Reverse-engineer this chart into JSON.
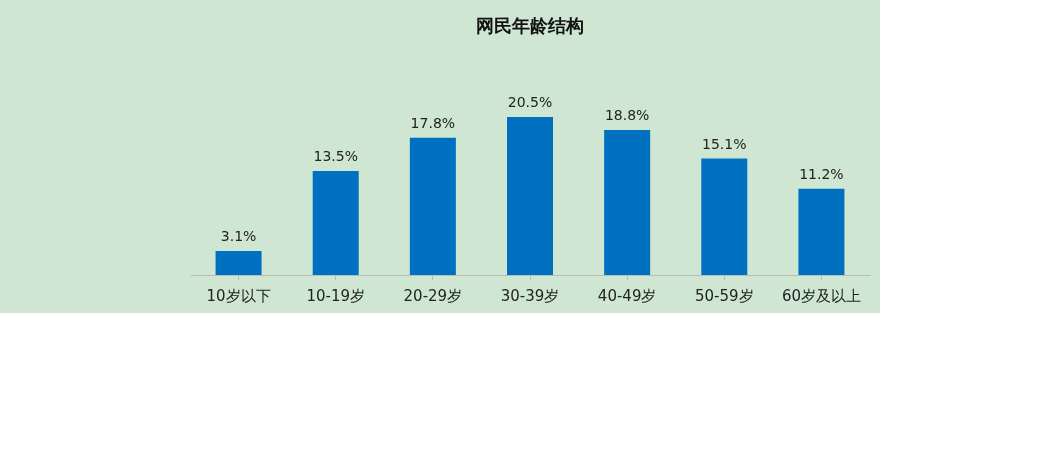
{
  "chart_data": {
    "type": "bar",
    "title": "网民年龄结构",
    "categories": [
      "10岁以下",
      "10-19岁",
      "20-29岁",
      "30-39岁",
      "40-49岁",
      "50-59岁",
      "60岁及以上"
    ],
    "values": [
      3.1,
      13.5,
      17.8,
      20.5,
      18.8,
      15.1,
      11.2
    ],
    "value_labels": [
      "3.1%",
      "13.5%",
      "17.8%",
      "20.5%",
      "18.8%",
      "15.1%",
      "11.2%"
    ],
    "color": "#0070c0"
  }
}
